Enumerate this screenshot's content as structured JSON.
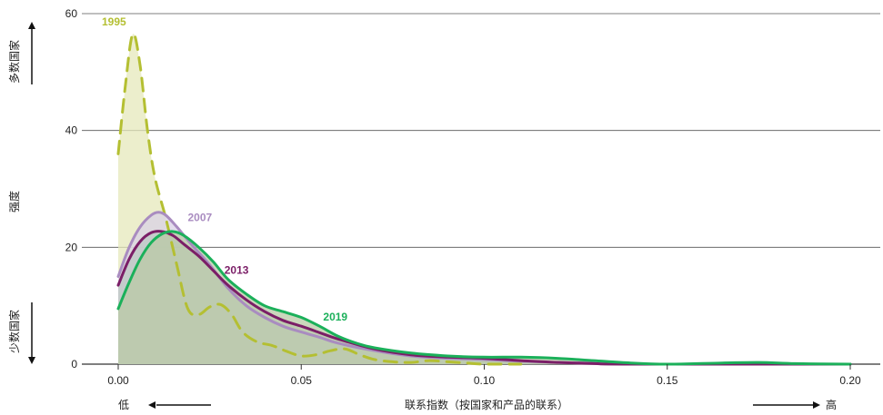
{
  "chart_data": {
    "type": "area",
    "ylabel": "强度",
    "ylabel_top": "多数国家",
    "ylabel_bottom": "少数国家",
    "xlabel": "联系指数（按国家和产品的联系）",
    "x_low_label": "低",
    "x_high_label": "高",
    "xlim": [
      0,
      0.2
    ],
    "ylim": [
      0,
      60
    ],
    "x_ticks": [
      "0.00",
      "0.05",
      "0.10",
      "0.15",
      "0.20"
    ],
    "y_ticks": [
      "0",
      "20",
      "40",
      "60"
    ],
    "grid": "horizontal",
    "series": [
      {
        "name": "1995",
        "color": "#b4bf32",
        "fill": "#e6e8bb",
        "dash": true,
        "points": [
          [
            0.0,
            36
          ],
          [
            0.002,
            48
          ],
          [
            0.004,
            56.5
          ],
          [
            0.006,
            51
          ],
          [
            0.008,
            40
          ],
          [
            0.01,
            32
          ],
          [
            0.013,
            25
          ],
          [
            0.016,
            17
          ],
          [
            0.019,
            9.5
          ],
          [
            0.022,
            8.5
          ],
          [
            0.025,
            9.8
          ],
          [
            0.028,
            10.2
          ],
          [
            0.031,
            8.5
          ],
          [
            0.034,
            5.5
          ],
          [
            0.038,
            3.8
          ],
          [
            0.042,
            3.2
          ],
          [
            0.046,
            2.2
          ],
          [
            0.05,
            1.4
          ],
          [
            0.054,
            1.6
          ],
          [
            0.058,
            2.3
          ],
          [
            0.062,
            2.6
          ],
          [
            0.066,
            1.6
          ],
          [
            0.07,
            0.8
          ],
          [
            0.075,
            0.4
          ],
          [
            0.08,
            0.3
          ],
          [
            0.085,
            0.6
          ],
          [
            0.09,
            0.4
          ],
          [
            0.095,
            0.2
          ],
          [
            0.1,
            0.0
          ],
          [
            0.11,
            0.0
          ]
        ]
      },
      {
        "name": "2007",
        "color": "#a98cc0",
        "fill": "#d9d2e6",
        "dash": false,
        "points": [
          [
            0.0,
            15
          ],
          [
            0.003,
            20
          ],
          [
            0.006,
            23.5
          ],
          [
            0.009,
            25.5
          ],
          [
            0.011,
            26
          ],
          [
            0.013,
            25.5
          ],
          [
            0.016,
            23.5
          ],
          [
            0.02,
            20.5
          ],
          [
            0.025,
            17
          ],
          [
            0.03,
            13
          ],
          [
            0.035,
            10
          ],
          [
            0.04,
            8
          ],
          [
            0.045,
            6.5
          ],
          [
            0.05,
            5.5
          ],
          [
            0.055,
            4.6
          ],
          [
            0.06,
            3.6
          ],
          [
            0.07,
            2.3
          ],
          [
            0.08,
            1.4
          ],
          [
            0.09,
            1.0
          ],
          [
            0.1,
            0.8
          ],
          [
            0.11,
            0.5
          ],
          [
            0.12,
            0.3
          ],
          [
            0.13,
            0.15
          ],
          [
            0.14,
            0.0
          ],
          [
            0.2,
            0.0
          ]
        ]
      },
      {
        "name": "2013",
        "color": "#7b1e67",
        "fill": "#bcc7c4",
        "dash": false,
        "points": [
          [
            0.0,
            13.5
          ],
          [
            0.003,
            18
          ],
          [
            0.006,
            21
          ],
          [
            0.009,
            22.5
          ],
          [
            0.012,
            22.7
          ],
          [
            0.015,
            22
          ],
          [
            0.018,
            20.5
          ],
          [
            0.022,
            18.5
          ],
          [
            0.026,
            16
          ],
          [
            0.03,
            13.5
          ],
          [
            0.035,
            11
          ],
          [
            0.04,
            9
          ],
          [
            0.045,
            7.5
          ],
          [
            0.05,
            6.5
          ],
          [
            0.055,
            5.4
          ],
          [
            0.06,
            4.3
          ],
          [
            0.07,
            2.6
          ],
          [
            0.08,
            1.6
          ],
          [
            0.09,
            1.2
          ],
          [
            0.1,
            1.0
          ],
          [
            0.11,
            0.6
          ],
          [
            0.12,
            0.3
          ],
          [
            0.13,
            0.1
          ],
          [
            0.14,
            0.0
          ],
          [
            0.2,
            0.0
          ]
        ]
      },
      {
        "name": "2019",
        "color": "#1bb05a",
        "fill": "#b9c9a6",
        "dash": false,
        "points": [
          [
            0.0,
            9.5
          ],
          [
            0.003,
            14
          ],
          [
            0.006,
            18
          ],
          [
            0.009,
            20.8
          ],
          [
            0.012,
            22.3
          ],
          [
            0.015,
            22.7
          ],
          [
            0.018,
            22
          ],
          [
            0.022,
            20
          ],
          [
            0.026,
            17.5
          ],
          [
            0.03,
            14.5
          ],
          [
            0.035,
            12
          ],
          [
            0.04,
            10
          ],
          [
            0.045,
            9
          ],
          [
            0.05,
            8
          ],
          [
            0.055,
            6.5
          ],
          [
            0.06,
            4.8
          ],
          [
            0.065,
            3.6
          ],
          [
            0.07,
            2.8
          ],
          [
            0.08,
            1.9
          ],
          [
            0.09,
            1.4
          ],
          [
            0.1,
            1.2
          ],
          [
            0.11,
            1.2
          ],
          [
            0.12,
            1.0
          ],
          [
            0.13,
            0.6
          ],
          [
            0.14,
            0.2
          ],
          [
            0.15,
            0.0
          ],
          [
            0.165,
            0.2
          ],
          [
            0.175,
            0.3
          ],
          [
            0.185,
            0.1
          ],
          [
            0.2,
            0.0
          ]
        ]
      }
    ],
    "labels": [
      {
        "text": "1995",
        "x": 0.0,
        "y": 58
      },
      {
        "text": "2007",
        "x": 0.019,
        "y": 24.5
      },
      {
        "text": "2013",
        "x": 0.029,
        "y": 15.5
      },
      {
        "text": "2019",
        "x": 0.056,
        "y": 7.5
      }
    ]
  }
}
